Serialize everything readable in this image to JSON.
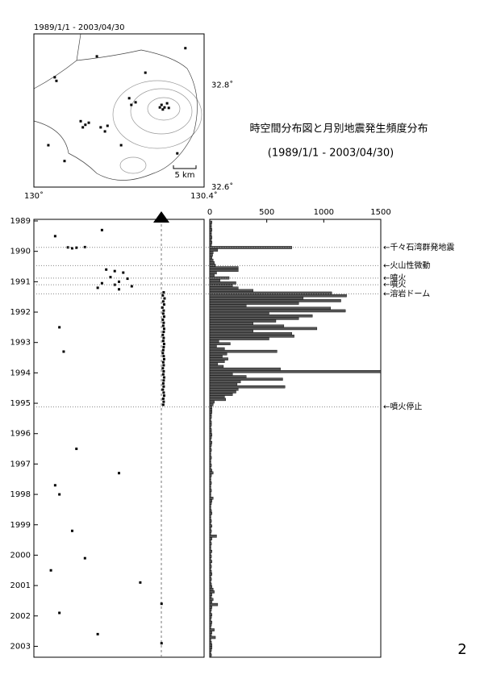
{
  "title": "時空間分布図と月別地震発生頻度分布",
  "subtitle": "(1989/1/1 - 2003/04/30)",
  "page_number": "2",
  "chart_data": [
    {
      "type": "map",
      "subtitle": "1989/1/1 - 2003/04/30",
      "scale_label": "5 km",
      "xlim": [
        130,
        130.4
      ],
      "ylim": [
        32.6,
        32.9
      ],
      "xticks": [
        {
          "value": 130,
          "label": "130˚"
        },
        {
          "value": 130.4,
          "label": "130.4˚"
        }
      ],
      "yticks": [
        {
          "value": 32.6,
          "label": "32.6˚"
        },
        {
          "value": 32.8,
          "label": "32.8˚"
        }
      ],
      "x": [
        130.3,
        130.307,
        130.313,
        130.303,
        130.317,
        130.296,
        130.11,
        130.121,
        130.129,
        130.115,
        130.157,
        130.167,
        130.173,
        130.224,
        130.239,
        130.229,
        130.053,
        130.049,
        130.034,
        130.072,
        130.205,
        130.337,
        130.262,
        130.148,
        130.356
      ],
      "y": [
        32.761,
        32.756,
        32.764,
        32.752,
        32.755,
        32.756,
        32.729,
        32.722,
        32.726,
        32.717,
        32.717,
        32.709,
        32.72,
        32.774,
        32.766,
        32.761,
        32.808,
        32.815,
        32.682,
        32.651,
        32.682,
        32.666,
        32.824,
        32.856,
        32.872
      ]
    },
    {
      "type": "scatter",
      "xlim": [
        130,
        130.4
      ],
      "ylim": [
        1989,
        2003.333
      ],
      "yticks": [
        1989,
        1990,
        1991,
        1992,
        1993,
        1994,
        1995,
        1996,
        1997,
        1998,
        1999,
        2000,
        2001,
        2002,
        2003
      ],
      "x": [
        130.08,
        130.1,
        130.12,
        130.09,
        130.17,
        130.19,
        130.21,
        130.18,
        130.22,
        130.2,
        130.16,
        130.19,
        130.23,
        130.15,
        130.2,
        130.305,
        130.303,
        130.307,
        130.304,
        130.306,
        130.302,
        130.305,
        130.304,
        130.306,
        130.303,
        130.305,
        130.304,
        130.306,
        130.305,
        130.303,
        130.305,
        130.304,
        130.306,
        130.305,
        130.304,
        130.303,
        130.305,
        130.306,
        130.304,
        130.305,
        130.303,
        130.305,
        130.304,
        130.306,
        130.305,
        130.304,
        130.305,
        130.303,
        130.305,
        130.306,
        130.304,
        130.305,
        130.304,
        130.05,
        130.16,
        130.06,
        130.07,
        130.05,
        130.06,
        130.09,
        130.12,
        130.25,
        130.3,
        130.06,
        130.15,
        130.3,
        130.1,
        130.2,
        130.04
      ],
      "y": [
        1989.87,
        1989.88,
        1989.86,
        1989.9,
        1990.6,
        1990.65,
        1990.7,
        1990.85,
        1990.9,
        1991.0,
        1991.05,
        1991.1,
        1991.15,
        1991.2,
        1991.25,
        1991.35,
        1991.45,
        1991.55,
        1991.65,
        1991.75,
        1991.85,
        1991.95,
        1992.05,
        1992.15,
        1992.25,
        1992.35,
        1992.45,
        1992.55,
        1992.65,
        1992.75,
        1992.85,
        1992.95,
        1993.05,
        1993.15,
        1993.25,
        1993.35,
        1993.45,
        1993.55,
        1993.65,
        1993.75,
        1993.85,
        1993.95,
        1994.05,
        1994.15,
        1994.25,
        1994.35,
        1994.45,
        1994.55,
        1994.65,
        1994.75,
        1994.85,
        1994.95,
        1995.05,
        1989.5,
        1989.3,
        1992.5,
        1993.3,
        1997.7,
        1998.0,
        1999.2,
        2000.1,
        2000.9,
        2001.6,
        2001.9,
        2002.6,
        2002.9,
        1996.5,
        1997.3,
        2000.5
      ]
    },
    {
      "type": "histogram",
      "color": "#555555",
      "xlim": [
        0,
        1500
      ],
      "xticks": [
        0,
        500,
        1000,
        1500
      ],
      "ylim": [
        1989,
        2003.333
      ],
      "bins": [
        1989,
        1989.083,
        1989.167,
        1989.25,
        1989.333,
        1989.417,
        1989.5,
        1989.583,
        1989.667,
        1989.75,
        1989.833,
        1989.917,
        1990,
        1990.083,
        1990.167,
        1990.25,
        1990.333,
        1990.417,
        1990.5,
        1990.583,
        1990.667,
        1990.75,
        1990.833,
        1990.917,
        1991,
        1991.083,
        1991.167,
        1991.25,
        1991.333,
        1991.417,
        1991.5,
        1991.583,
        1991.667,
        1991.75,
        1991.833,
        1991.917,
        1992,
        1992.083,
        1992.167,
        1992.25,
        1992.333,
        1992.417,
        1992.5,
        1992.583,
        1992.667,
        1992.75,
        1992.833,
        1992.917,
        1993,
        1993.083,
        1993.167,
        1993.25,
        1993.333,
        1993.417,
        1993.5,
        1993.583,
        1993.667,
        1993.75,
        1993.833,
        1993.917,
        1994,
        1994.083,
        1994.167,
        1994.25,
        1994.333,
        1994.417,
        1994.5,
        1994.583,
        1994.667,
        1994.75,
        1994.833,
        1994.917,
        1995,
        1995.083,
        1995.167,
        1995.25,
        1995.333,
        1995.417,
        1995.5,
        1995.583,
        1995.667,
        1995.75,
        1995.833,
        1995.917,
        1996,
        1996.083,
        1996.167,
        1996.25,
        1996.333,
        1996.417,
        1996.5,
        1996.583,
        1996.667,
        1996.75,
        1996.833,
        1996.917,
        1997,
        1997.083,
        1997.167,
        1997.25,
        1997.333,
        1997.417,
        1997.5,
        1997.583,
        1997.667,
        1997.75,
        1997.833,
        1997.917,
        1998,
        1998.083,
        1998.167,
        1998.25,
        1998.333,
        1998.417,
        1998.5,
        1998.583,
        1998.667,
        1998.75,
        1998.833,
        1998.917,
        1999,
        1999.083,
        1999.167,
        1999.25,
        1999.333,
        1999.417,
        1999.5,
        1999.583,
        1999.667,
        1999.75,
        1999.833,
        1999.917,
        2000,
        2000.083,
        2000.167,
        2000.25,
        2000.333,
        2000.417,
        2000.5,
        2000.583,
        2000.667,
        2000.75,
        2000.833,
        2000.917,
        2001,
        2001.083,
        2001.167,
        2001.25,
        2001.333,
        2001.417,
        2001.5,
        2001.583,
        2001.667,
        2001.75,
        2001.833,
        2001.917,
        2002,
        2002.083,
        2002.167,
        2002.25,
        2002.333,
        2002.417,
        2002.5,
        2002.583,
        2002.667,
        2002.75,
        2002.833,
        2002.917,
        2003,
        2003.083,
        2003.167,
        2003.25,
        2003.333
      ],
      "values": [
        20,
        15,
        15,
        20,
        15,
        15,
        20,
        15,
        20,
        15,
        720,
        70,
        30,
        25,
        20,
        30,
        40,
        50,
        250,
        250,
        60,
        40,
        170,
        90,
        230,
        200,
        250,
        380,
        1070,
        1200,
        820,
        1150,
        780,
        320,
        1060,
        1190,
        520,
        900,
        780,
        580,
        380,
        650,
        940,
        380,
        720,
        740,
        520,
        80,
        180,
        60,
        130,
        590,
        150,
        110,
        160,
        130,
        70,
        120,
        620,
        1500,
        200,
        320,
        640,
        270,
        240,
        660,
        250,
        230,
        200,
        130,
        140,
        40,
        30,
        20,
        20,
        20,
        15,
        15,
        10,
        15,
        15,
        10,
        15,
        15,
        20,
        15,
        10,
        20,
        15,
        10,
        15,
        10,
        10,
        15,
        10,
        10,
        15,
        10,
        20,
        30,
        15,
        10,
        10,
        15,
        10,
        10,
        15,
        10,
        10,
        30,
        20,
        15,
        10,
        10,
        15,
        20,
        10,
        10,
        15,
        10,
        20,
        10,
        15,
        10,
        60,
        20,
        10,
        15,
        10,
        10,
        20,
        10,
        15,
        10,
        20,
        10,
        15,
        10,
        15,
        20,
        10,
        15,
        10,
        15,
        20,
        30,
        40,
        20,
        15,
        30,
        20,
        70,
        20,
        15,
        10,
        20,
        15,
        10,
        20,
        15,
        10,
        40,
        20,
        15,
        50,
        10,
        15,
        20,
        20,
        15,
        10,
        15
      ],
      "annotations": [
        {
          "text": "←千々石湾群発地震",
          "y": 1989.87
        },
        {
          "text": "←火山性微動",
          "y": 1990.47
        },
        {
          "text": "←噴火",
          "y": 1990.88
        },
        {
          "text": "←噴火",
          "y": 1991.1
        },
        {
          "text": "←溶岩ドーム",
          "y": 1991.4
        },
        {
          "text": "←噴火停止",
          "y": 1995.12
        }
      ]
    }
  ]
}
